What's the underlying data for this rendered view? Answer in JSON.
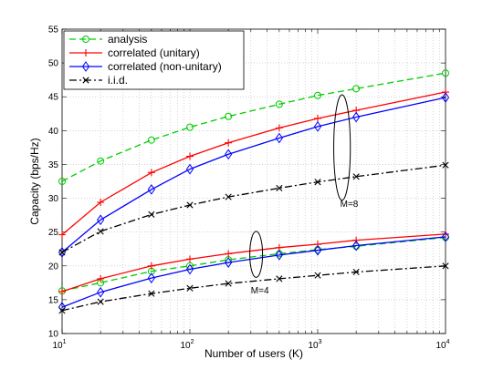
{
  "chart_data": {
    "type": "line",
    "xlabel": "Number of users (K)",
    "ylabel": "Capacity (bps/Hz)",
    "xscale": "log",
    "xlim": [
      10,
      10000
    ],
    "ylim": [
      10,
      55
    ],
    "grid": true,
    "legend_placement": "top-left",
    "x_tick_labels": [
      {
        "value": 10,
        "base": "10",
        "exp": "1"
      },
      {
        "value": 100,
        "base": "10",
        "exp": "2"
      },
      {
        "value": 1000,
        "base": "10",
        "exp": "3"
      },
      {
        "value": 10000,
        "base": "10",
        "exp": "4"
      }
    ],
    "y_ticks": [
      10,
      15,
      20,
      25,
      30,
      35,
      40,
      45,
      50,
      55
    ],
    "x": [
      10,
      20,
      50,
      100,
      200,
      500,
      1000,
      2000,
      10000
    ],
    "series": [
      {
        "name": "analysis",
        "color": "#00cc00",
        "dash": "7,4",
        "marker": "circle",
        "groups": [
          [
            32.5,
            35.5,
            38.6,
            40.5,
            42.1,
            43.9,
            45.2,
            46.2,
            48.5
          ],
          [
            16.3,
            17.5,
            19.2,
            20.0,
            20.9,
            21.8,
            22.4,
            22.9,
            24.2
          ]
        ]
      },
      {
        "name": "correlated (unitary)",
        "color": "#ff0000",
        "dash": "",
        "marker": "plus",
        "groups": [
          [
            24.6,
            29.4,
            33.8,
            36.2,
            38.2,
            40.4,
            41.8,
            43.0,
            45.7
          ],
          [
            16.2,
            18.1,
            20.0,
            21.0,
            21.8,
            22.7,
            23.2,
            23.8,
            24.7
          ]
        ]
      },
      {
        "name": "correlated (non-unitary)",
        "color": "#0000ff",
        "dash": "",
        "marker": "diamond",
        "groups": [
          [
            22.0,
            26.8,
            31.3,
            34.3,
            36.5,
            38.9,
            40.6,
            42.0,
            44.9
          ],
          [
            13.9,
            16.1,
            18.2,
            19.5,
            20.5,
            21.6,
            22.3,
            23.0,
            24.3
          ]
        ]
      },
      {
        "name": "i.i.d.",
        "color": "#000000",
        "dash": "8,3,2,3",
        "marker": "x",
        "groups": [
          [
            22.0,
            25.1,
            27.6,
            29.0,
            30.2,
            31.5,
            32.4,
            33.2,
            34.9
          ],
          [
            13.4,
            14.7,
            15.9,
            16.7,
            17.4,
            18.1,
            18.6,
            19.1,
            20.0
          ]
        ]
      }
    ],
    "annotations": [
      {
        "text": "M=8",
        "x": 1500,
        "y": 28.7,
        "ellipse": {
          "cx": 1550,
          "cy": 37.5,
          "rx_decades": 0.065,
          "ry": 7.8
        }
      },
      {
        "text": "M=4",
        "x": 300,
        "y": 15.9,
        "ellipse": {
          "cx": 330,
          "cy": 21.7,
          "rx_decades": 0.05,
          "ry": 3.4
        }
      }
    ]
  }
}
